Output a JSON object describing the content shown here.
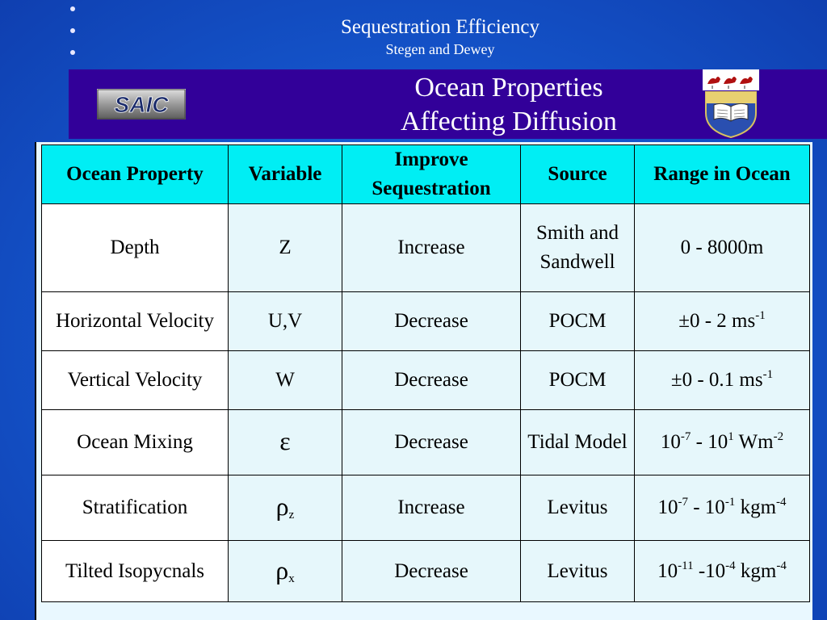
{
  "header": {
    "title": "Sequestration Efficiency",
    "subtitle": "Stegen and Dewey"
  },
  "band": {
    "title_line1": "Ocean Properties",
    "title_line2": "Affecting Diffusion",
    "left_logo_text": "SAIC"
  },
  "table": {
    "columns": [
      "Ocean Property",
      "Variable",
      "Improve Sequestration",
      "Source",
      "Range in Ocean"
    ],
    "rows": [
      {
        "property": "Depth",
        "variable": "Z",
        "improve": "Increase",
        "source": "Smith and Sandwell",
        "range": {
          "pre": "0 - 8000m"
        }
      },
      {
        "property": "Horizontal Velocity",
        "variable": "U,V",
        "improve": "Decrease",
        "source": "POCM",
        "range": {
          "pre": "±0 - 2 ms",
          "sup1": "-1"
        }
      },
      {
        "property": "Vertical Velocity",
        "variable": "W",
        "improve": "Decrease",
        "source": "POCM",
        "range": {
          "pre": "±0 - 0.1 ms",
          "sup1": "-1"
        }
      },
      {
        "property": "Ocean Mixing",
        "variable": "ε",
        "improve": "Decrease",
        "source": "Tidal Model",
        "range": {
          "pre": "10",
          "sup1": "-7",
          "mid": " - 10",
          "sup2": "1",
          "post": " Wm",
          "sup3": "-2"
        }
      },
      {
        "property": "Stratification",
        "variable": "ρ",
        "variable_sub": "z",
        "improve": "Increase",
        "source": "Levitus",
        "range": {
          "pre": "10",
          "sup1": "-7",
          "mid": " - 10",
          "sup2": "-1",
          "post": " kgm",
          "sup3": "-4"
        }
      },
      {
        "property": "Tilted Isopycnals",
        "variable": "ρ",
        "variable_sub": "x",
        "improve": "Decrease",
        "source": "Levitus",
        "range": {
          "pre": "10",
          "sup1": "-11",
          "mid": " -10",
          "sup2": "-4",
          "post": " kgm",
          "sup3": "-4"
        }
      }
    ]
  },
  "icons": {
    "left_logo": "saic-logo",
    "right_logo": "university-crest-icon",
    "bullets": "bullet-dot-icon"
  }
}
